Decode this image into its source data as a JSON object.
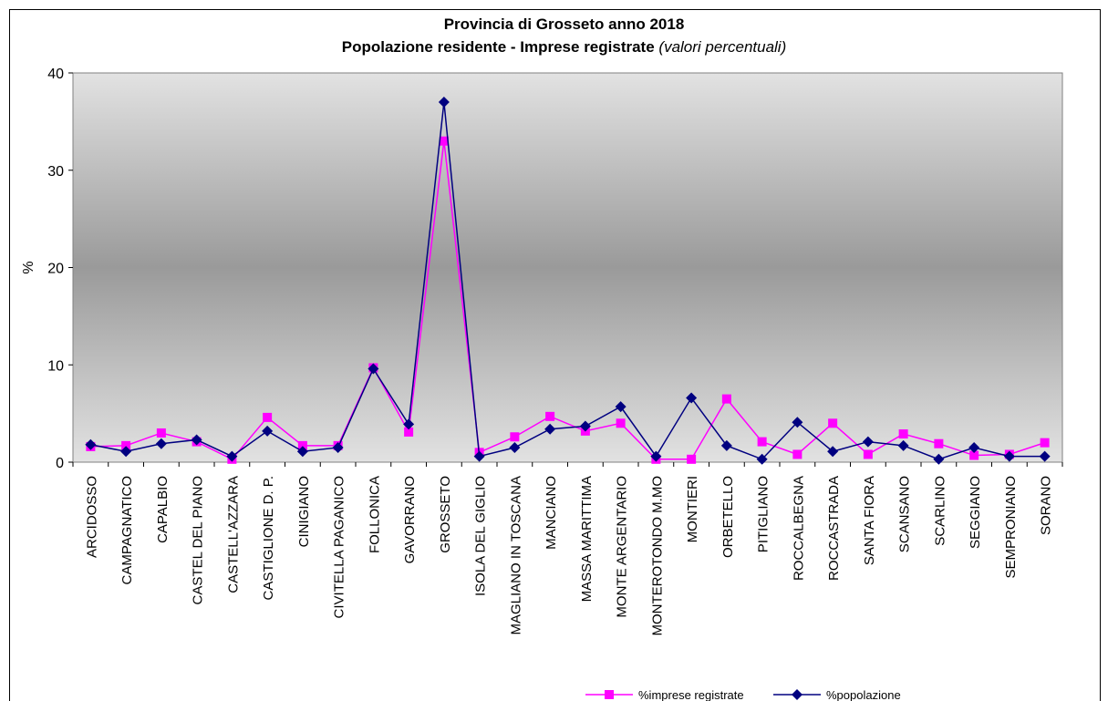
{
  "chart_data": {
    "type": "line",
    "title": "Provincia di Grosseto anno 2018",
    "subtitle_main": "Popolazione residente - Imprese registrate ",
    "subtitle_italic": "(valori percentuali)",
    "xlabel": "",
    "ylabel": "%",
    "ylim": [
      0,
      40
    ],
    "yticks": [
      "0",
      "10",
      "20",
      "30",
      "40"
    ],
    "categories": [
      "ARCIDOSSO",
      "CAMPAGNATICO",
      "CAPALBIO",
      "CASTEL DEL PIANO",
      "CASTELL'AZZARA",
      "CASTIGLIONE D. P.",
      "CINIGIANO",
      "CIVITELLA PAGANICO",
      "FOLLONICA",
      "GAVORRANO",
      "GROSSETO",
      "ISOLA DEL GIGLIO",
      "MAGLIANO IN TOSCANA",
      "MANCIANO",
      "MASSA MARITTIMA",
      "MONTE ARGENTARIO",
      "MONTEROTONDO M.MO",
      "MONTIERI",
      "ORBETELLO",
      "PITIGLIANO",
      "ROCCALBEGNA",
      "ROCCASTRADA",
      "SANTA FIORA",
      "SCANSANO",
      "SCARLINO",
      "SEGGIANO",
      "SEMPRONIANO",
      "SORANO"
    ],
    "series": [
      {
        "name": "%imprese registrate",
        "color": "#ff00ff",
        "marker": "square",
        "values": [
          1.6,
          1.7,
          3.0,
          2.1,
          0.3,
          4.6,
          1.7,
          1.7,
          9.7,
          3.1,
          33.0,
          1.0,
          2.6,
          4.7,
          3.2,
          4.0,
          0.3,
          0.3,
          6.5,
          2.1,
          0.8,
          4.0,
          0.8,
          2.9,
          1.9,
          0.7,
          0.8,
          2.0
        ]
      },
      {
        "name": "%popolazione",
        "color": "#000080",
        "marker": "diamond",
        "values": [
          1.8,
          1.1,
          1.9,
          2.3,
          0.6,
          3.2,
          1.1,
          1.5,
          9.6,
          3.9,
          37.0,
          0.6,
          1.5,
          3.4,
          3.7,
          5.7,
          0.6,
          6.6,
          1.7,
          0.3,
          4.1,
          1.1,
          2.1,
          1.7,
          0.3,
          1.5,
          0.6,
          0.6
        ]
      }
    ],
    "legend_position": "bottom",
    "grid": false
  }
}
